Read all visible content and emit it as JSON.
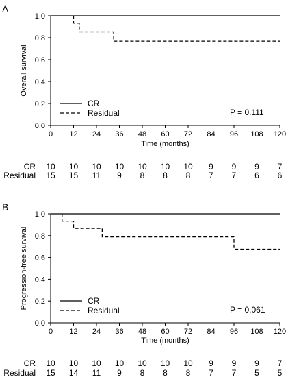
{
  "chart_data": [
    {
      "type": "line",
      "panel_label": "A",
      "ylabel": "Overall survival",
      "xlabel": "Time (months)",
      "xlim": [
        0,
        120
      ],
      "ylim": [
        0,
        1
      ],
      "x_ticks": [
        "0",
        "12",
        "24",
        "36",
        "48",
        "60",
        "72",
        "84",
        "96",
        "108",
        "120"
      ],
      "y_ticks": [
        "0.0",
        "0.2",
        "0.4",
        "0.6",
        "0.8",
        "1.0"
      ],
      "series": [
        {
          "name": "CR",
          "style": "solid",
          "x": [
            0,
            120
          ],
          "y": [
            1.0,
            1.0
          ]
        },
        {
          "name": "Residual",
          "style": "dashed",
          "x": [
            12,
            12,
            15,
            15,
            17,
            17,
            33,
            33,
            120
          ],
          "y": [
            1.0,
            0.933,
            0.933,
            0.853,
            0.853,
            0.853,
            0.853,
            0.768,
            0.768
          ]
        }
      ],
      "legend_placement": "bottom-left",
      "annotation": "P = 0.111",
      "risk_table": {
        "times": [
          0,
          12,
          24,
          36,
          48,
          60,
          72,
          84,
          96,
          108,
          120
        ],
        "rows": [
          {
            "label": "CR",
            "values": [
              "10",
              "10",
              "10",
              "10",
              "10",
              "10",
              "10",
              "9",
              "9",
              "9",
              "7"
            ]
          },
          {
            "label": "Residual",
            "values": [
              "15",
              "15",
              "11",
              "9",
              "8",
              "8",
              "8",
              "7",
              "7",
              "6",
              "6"
            ]
          }
        ]
      }
    },
    {
      "type": "line",
      "panel_label": "B",
      "ylabel": "Progression-free survival",
      "xlabel": "Time (months)",
      "xlim": [
        0,
        120
      ],
      "ylim": [
        0,
        1
      ],
      "x_ticks": [
        "0",
        "12",
        "24",
        "36",
        "48",
        "60",
        "72",
        "84",
        "96",
        "108",
        "120"
      ],
      "y_ticks": [
        "0.0",
        "0.2",
        "0.4",
        "0.6",
        "0.8",
        "1.0"
      ],
      "series": [
        {
          "name": "CR",
          "style": "solid",
          "x": [
            0,
            120
          ],
          "y": [
            1.0,
            1.0
          ]
        },
        {
          "name": "Residual",
          "style": "dashed",
          "x": [
            6,
            6,
            9,
            9,
            12,
            12,
            27,
            27,
            96,
            96,
            120
          ],
          "y": [
            1.0,
            0.933,
            0.933,
            0.933,
            0.933,
            0.867,
            0.867,
            0.789,
            0.789,
            0.676,
            0.676
          ]
        }
      ],
      "legend_placement": "bottom-left",
      "annotation": "P = 0.061",
      "risk_table": {
        "times": [
          0,
          12,
          24,
          36,
          48,
          60,
          72,
          84,
          96,
          108,
          120
        ],
        "rows": [
          {
            "label": "CR",
            "values": [
              "10",
              "10",
              "10",
              "10",
              "10",
              "10",
              "10",
              "9",
              "9",
              "9",
              "7"
            ]
          },
          {
            "label": "Residual",
            "values": [
              "15",
              "14",
              "11",
              "9",
              "8",
              "8",
              "8",
              "7",
              "7",
              "5",
              "5"
            ]
          }
        ]
      }
    }
  ]
}
